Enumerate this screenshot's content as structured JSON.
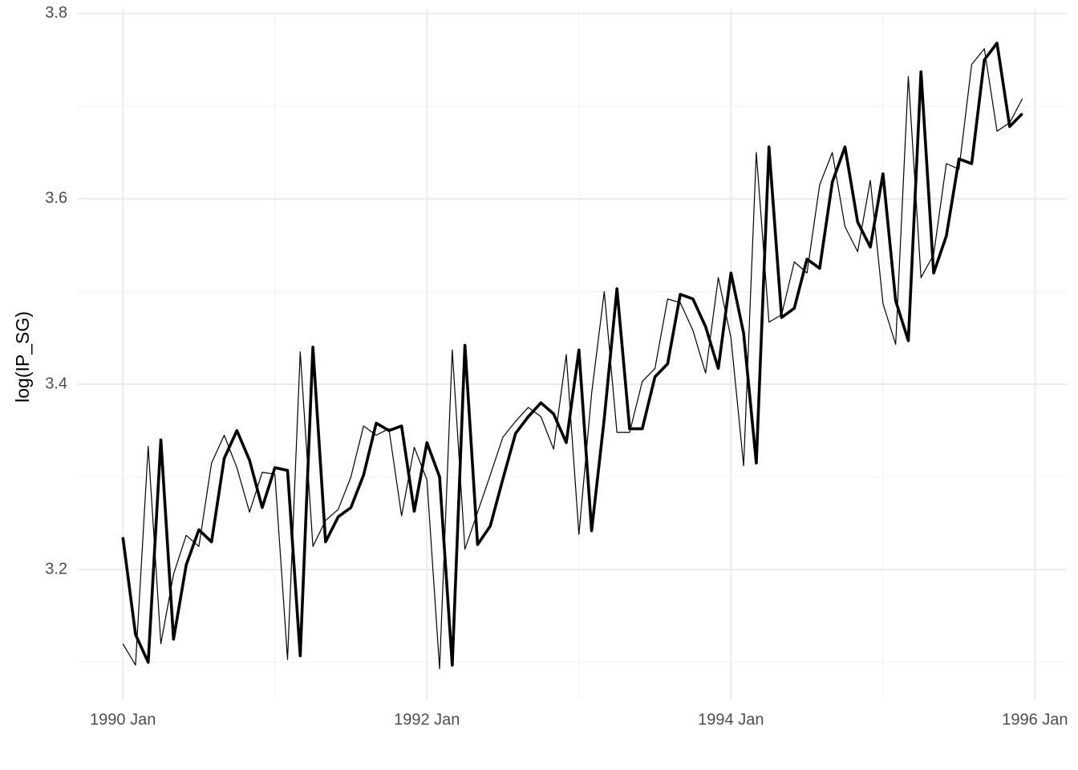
{
  "chart_data": {
    "type": "line",
    "ylabel": "log(IP_SG)",
    "x": [
      "1990 Jan",
      "1990 Feb",
      "1990 Mar",
      "1990 Apr",
      "1990 May",
      "1990 Jun",
      "1990 Jul",
      "1990 Aug",
      "1990 Sep",
      "1990 Oct",
      "1990 Nov",
      "1990 Dec",
      "1991 Jan",
      "1991 Feb",
      "1991 Mar",
      "1991 Apr",
      "1991 May",
      "1991 Jun",
      "1991 Jul",
      "1991 Aug",
      "1991 Sep",
      "1991 Oct",
      "1991 Nov",
      "1991 Dec",
      "1992 Jan",
      "1992 Feb",
      "1992 Mar",
      "1992 Apr",
      "1992 May",
      "1992 Jun",
      "1992 Jul",
      "1992 Aug",
      "1992 Sep",
      "1992 Oct",
      "1992 Nov",
      "1992 Dec",
      "1993 Jan",
      "1993 Feb",
      "1993 Mar",
      "1993 Apr",
      "1993 May",
      "1993 Jun",
      "1993 Jul",
      "1993 Aug",
      "1993 Sep",
      "1993 Oct",
      "1993 Nov",
      "1993 Dec",
      "1994 Jan",
      "1994 Feb",
      "1994 Mar",
      "1994 Apr",
      "1994 May",
      "1994 Jun",
      "1994 Jul",
      "1994 Aug",
      "1994 Sep",
      "1994 Oct",
      "1994 Nov",
      "1994 Dec",
      "1995 Jan",
      "1995 Feb",
      "1995 Mar",
      "1995 Apr",
      "1995 May",
      "1995 Jun",
      "1995 Jul",
      "1995 Aug",
      "1995 Sep",
      "1995 Oct",
      "1995 Nov",
      "1995 Dec"
    ],
    "series": [
      {
        "color": "#000000",
        "linewidth": 1.2,
        "values": [
          3.12,
          3.097,
          3.333,
          3.12,
          3.195,
          3.237,
          3.225,
          3.315,
          3.345,
          3.31,
          3.262,
          3.305,
          3.303,
          3.103,
          3.435,
          3.225,
          3.253,
          3.265,
          3.3,
          3.355,
          3.345,
          3.352,
          3.258,
          3.332,
          3.297,
          3.093,
          3.437,
          3.222,
          3.262,
          3.302,
          3.343,
          3.36,
          3.375,
          3.365,
          3.33,
          3.432,
          3.238,
          3.39,
          3.5,
          3.348,
          3.348,
          3.403,
          3.417,
          3.492,
          3.488,
          3.458,
          3.412,
          3.515,
          3.45,
          3.312,
          3.65,
          3.467,
          3.475,
          3.532,
          3.52,
          3.615,
          3.65,
          3.57,
          3.543,
          3.62,
          3.487,
          3.443,
          3.732,
          3.515,
          3.54,
          3.638,
          3.632,
          3.745,
          3.762,
          3.673,
          3.682,
          3.708
        ]
      },
      {
        "color": "#000000",
        "linewidth": 3.6,
        "values": [
          3.235,
          3.13,
          3.1,
          3.34,
          3.125,
          3.205,
          3.243,
          3.23,
          3.32,
          3.35,
          3.318,
          3.267,
          3.31,
          3.307,
          3.107,
          3.44,
          3.23,
          3.257,
          3.267,
          3.302,
          3.358,
          3.35,
          3.355,
          3.263,
          3.337,
          3.3,
          3.097,
          3.442,
          3.227,
          3.247,
          3.298,
          3.347,
          3.365,
          3.38,
          3.368,
          3.337,
          3.437,
          3.242,
          3.363,
          3.503,
          3.352,
          3.352,
          3.408,
          3.422,
          3.497,
          3.492,
          3.462,
          3.417,
          3.52,
          3.455,
          3.315,
          3.656,
          3.472,
          3.482,
          3.535,
          3.525,
          3.618,
          3.656,
          3.575,
          3.548,
          3.627,
          3.49,
          3.447,
          3.737,
          3.52,
          3.56,
          3.643,
          3.638,
          3.75,
          3.768,
          3.678,
          3.692
        ]
      }
    ],
    "xlim": [
      "1989 Sep",
      "1996 Mar"
    ],
    "xticks": [
      "1990 Jan",
      "1992 Jan",
      "1994 Jan",
      "1996 Jan"
    ],
    "xminorticks": [
      "1991 Jan",
      "1993 Jan",
      "1995 Jan"
    ],
    "ylim": [
      3.06,
      3.805
    ],
    "yticks": [
      3.2,
      3.4,
      3.6,
      3.8
    ],
    "yminorticks": [
      3.1,
      3.3,
      3.5,
      3.7
    ],
    "grid": true
  }
}
